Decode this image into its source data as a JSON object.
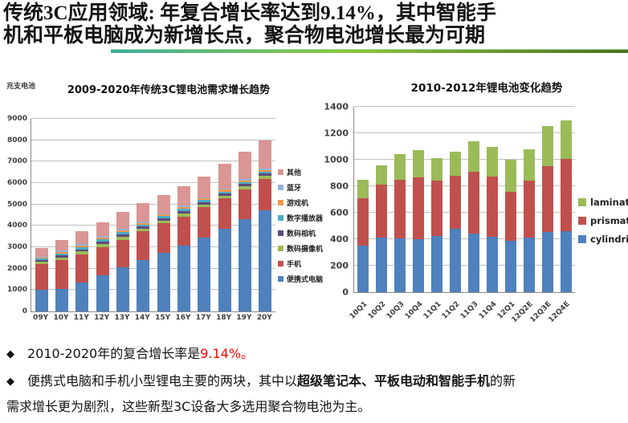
{
  "title": {
    "line1": "传统3C应用领域: 年复合增长率达到9.14%，其中智能手",
    "line2": "机和平板电脑成为新增长点，聚合物电池增长最为可期"
  },
  "colors": {
    "highlight_red": "#ff0000",
    "grid": "#c0c0c0",
    "axis": "#898989",
    "underline_gradient": [
      "#3fae9e",
      "#8cc63f",
      "#4e6f1d"
    ]
  },
  "chart_data": [
    {
      "type": "bar",
      "stacked": true,
      "title": "2009-2020年传统3C锂电池需求增长趋势",
      "unit_label": "兆支电池",
      "ylim": [
        0,
        9000
      ],
      "ystep": 1000,
      "yticks": [
        "0",
        "1000",
        "2000",
        "3000",
        "4000",
        "5000",
        "6000",
        "7000",
        "8000",
        "9000"
      ],
      "grid": true,
      "legend_position": "right",
      "categories": [
        "09Y",
        "10Y",
        "11Y",
        "12Y",
        "13Y",
        "14Y",
        "15Y",
        "16Y",
        "17Y",
        "18Y",
        "19Y",
        "20Y"
      ],
      "series": [
        {
          "name": "便携式电脑",
          "color": "#4f81bd",
          "values": [
            1000,
            1050,
            1360,
            1690,
            2060,
            2400,
            2740,
            3060,
            3460,
            3860,
            4310,
            4740
          ]
        },
        {
          "name": "手机",
          "color": "#c0504d",
          "values": [
            1200,
            1350,
            1290,
            1300,
            1280,
            1340,
            1370,
            1380,
            1400,
            1415,
            1400,
            1450
          ]
        },
        {
          "name": "数码摄像机",
          "color": "#9bbb59",
          "values": [
            110,
            130,
            150,
            160,
            155,
            140,
            145,
            150,
            145,
            140,
            145,
            150
          ]
        },
        {
          "name": "数码相机",
          "color": "#604a7b",
          "values": [
            75,
            90,
            100,
            110,
            105,
            95,
            95,
            100,
            95,
            95,
            95,
            100
          ]
        },
        {
          "name": "数字播放器",
          "color": "#4bacc6",
          "values": [
            75,
            90,
            100,
            105,
            105,
            95,
            95,
            100,
            95,
            95,
            95,
            100
          ]
        },
        {
          "name": "游戏机",
          "color": "#f79646",
          "values": [
            60,
            70,
            80,
            85,
            80,
            75,
            80,
            80,
            80,
            80,
            80,
            80
          ]
        },
        {
          "name": "蓝牙",
          "color": "#95b3d7",
          "values": [
            50,
            60,
            70,
            75,
            75,
            65,
            65,
            70,
            65,
            65,
            65,
            70
          ]
        },
        {
          "name": "其他",
          "color": "#d99694",
          "values": [
            380,
            490,
            600,
            625,
            790,
            850,
            850,
            900,
            970,
            1150,
            1270,
            1310
          ]
        }
      ]
    },
    {
      "type": "bar",
      "stacked": true,
      "title": "2010-2012年锂电池变化趋势",
      "unit_label": "",
      "ylim": [
        0,
        1400
      ],
      "ystep": 200,
      "yticks": [
        "0",
        "200",
        "400",
        "600",
        "800",
        "1000",
        "1200",
        "1400"
      ],
      "grid": true,
      "legend_position": "right",
      "xlabel_rotation": -45,
      "categories": [
        "10Q1",
        "10Q2",
        "10Q3",
        "10Q4",
        "11Q1",
        "11Q2",
        "11Q3",
        "11Q4",
        "12Q1",
        "12Q2E",
        "12Q3E",
        "12Q4E"
      ],
      "series": [
        {
          "name": "cylindrical",
          "color": "#4f81bd",
          "values": [
            350,
            410,
            405,
            400,
            425,
            480,
            445,
            420,
            385,
            410,
            455,
            460
          ]
        },
        {
          "name": "prismatic",
          "color": "#c0504d",
          "values": [
            360,
            400,
            445,
            465,
            415,
            400,
            465,
            450,
            375,
            430,
            495,
            545
          ]
        },
        {
          "name": "laminate",
          "color": "#9bbb59",
          "values": [
            140,
            145,
            190,
            210,
            170,
            180,
            230,
            230,
            240,
            240,
            305,
            295
          ]
        }
      ]
    }
  ],
  "bullets": {
    "b1": {
      "marker": "◆",
      "pre": "2010-2020年的复合增长率是",
      "highlight": "9.14%。"
    },
    "b2": {
      "marker": "◆",
      "line1_pre": "便携式电脑和手机小型锂电主要的两块，其中以",
      "line1_bold": "超级笔记本、平板电动和智能手机",
      "line1_post": "的新",
      "line2": "需求增长更为剧烈，这些新型3C设备大多选用聚合物电池为主。"
    }
  }
}
